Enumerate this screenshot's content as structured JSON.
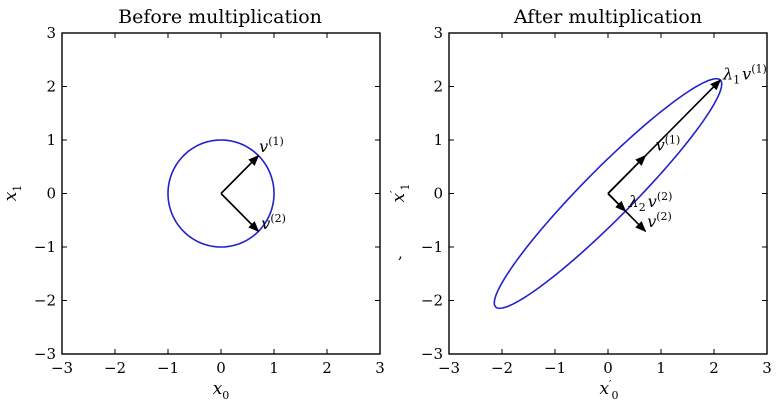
{
  "chart_data": [
    {
      "type": "line",
      "title": "Before multiplication",
      "xlabel": {
        "base": "x",
        "sub": "0",
        "prime": ""
      },
      "ylabel": {
        "base": "x",
        "sub": "1",
        "prime": ""
      },
      "xlim": [
        -3,
        3
      ],
      "ylim": [
        -3,
        3
      ],
      "xticks": [
        "−3",
        "−2",
        "−1",
        "0",
        "1",
        "2",
        "3"
      ],
      "yticks": [
        "−3",
        "−2",
        "−1",
        "0",
        "1",
        "2",
        "3"
      ],
      "series": [
        {
          "kind": "ellipse",
          "color": "#2222cc",
          "center": [
            0,
            0
          ],
          "axis1": [
            0.7071,
            0.7071
          ],
          "axis2": [
            0.7071,
            -0.7071
          ]
        }
      ],
      "arrows": [
        {
          "from": [
            0,
            0
          ],
          "to": [
            0.7071,
            0.7071
          ],
          "label": "v",
          "sup": "(1)",
          "label_at": [
            0.72,
            0.78
          ]
        },
        {
          "from": [
            0,
            0
          ],
          "to": [
            0.7071,
            -0.7071
          ],
          "label": "v",
          "sup": "(2)",
          "label_at": [
            0.76,
            -0.66
          ]
        }
      ]
    },
    {
      "type": "line",
      "title": "After multiplication",
      "xlabel": {
        "base": "x",
        "sub": "0",
        "prime": "′"
      },
      "ylabel": {
        "base": "x",
        "sub": "1",
        "prime": "′"
      },
      "xlim": [
        -3,
        3
      ],
      "ylim": [
        -3,
        3
      ],
      "xticks": [
        "−3",
        "−2",
        "−1",
        "0",
        "1",
        "2",
        "3"
      ],
      "yticks": [
        "−3",
        "−2",
        "−1",
        "0",
        "1",
        "2",
        "3"
      ],
      "series": [
        {
          "kind": "ellipse",
          "color": "#2222cc",
          "center": [
            0,
            0
          ],
          "axis1": [
            2.12,
            2.12
          ],
          "axis2": [
            0.33,
            -0.33
          ]
        }
      ],
      "arrows": [
        {
          "from": [
            0,
            0
          ],
          "to": [
            2.12,
            2.12
          ],
          "label": "λ",
          "label_sub": "1",
          "label2": "v",
          "sup": "(1)",
          "label_at": [
            2.17,
            2.13
          ]
        },
        {
          "from": [
            0,
            0
          ],
          "to": [
            0.7071,
            0.7071
          ],
          "label": "v",
          "sup": "(1)",
          "label_at": [
            0.9,
            0.8
          ]
        },
        {
          "from": [
            0,
            0
          ],
          "to": [
            0.33,
            -0.33
          ],
          "label": "λ",
          "label_sub": "2",
          "label2": "v",
          "sup": "(2)",
          "label_at": [
            0.39,
            -0.25
          ]
        },
        {
          "from": [
            0,
            0
          ],
          "to": [
            0.7071,
            -0.7071
          ],
          "label": "v",
          "sup": "(2)",
          "label_at": [
            0.74,
            -0.63
          ]
        }
      ]
    }
  ],
  "stray_mark": ","
}
